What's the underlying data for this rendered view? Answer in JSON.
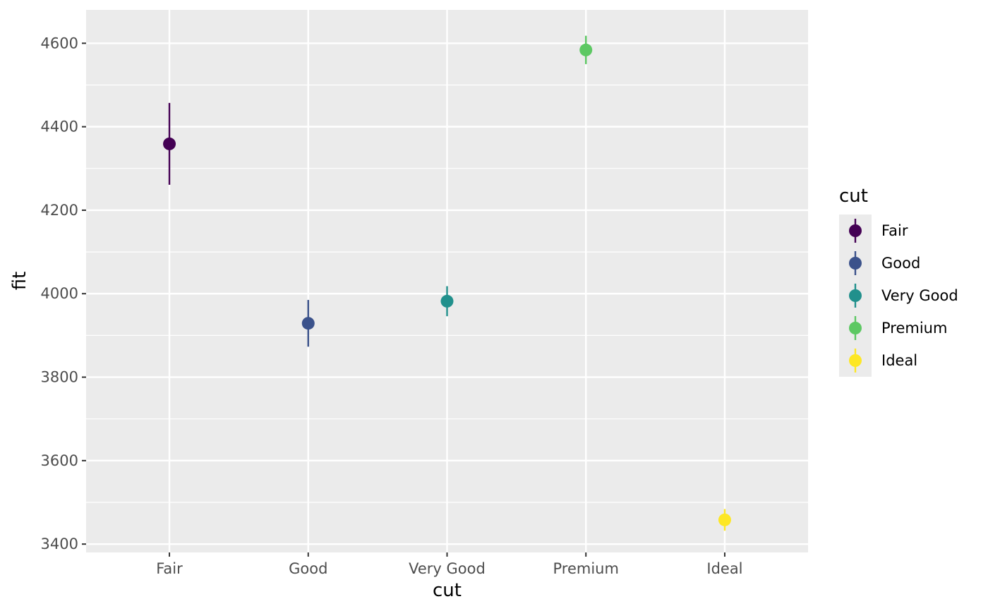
{
  "chart_data": {
    "type": "scatter",
    "xlabel": "cut",
    "ylabel": "fit",
    "categories": [
      "Fair",
      "Good",
      "Very Good",
      "Premium",
      "Ideal"
    ],
    "ylim": [
      3380,
      4680
    ],
    "y_ticks": [
      3400,
      3600,
      3800,
      4000,
      4200,
      4400,
      4600
    ],
    "y_tick_labels": [
      "3400",
      "3600",
      "3800",
      "4000",
      "4200",
      "4400",
      "4600"
    ],
    "grid": true,
    "legend": {
      "title": "cut",
      "position": "right",
      "entries": [
        "Fair",
        "Good",
        "Very Good",
        "Premium",
        "Ideal"
      ]
    },
    "points": [
      {
        "category": "Fair",
        "fit": 4359,
        "lower": 4261,
        "upper": 4457,
        "color": "#440154"
      },
      {
        "category": "Good",
        "fit": 3929,
        "lower": 3873,
        "upper": 3985,
        "color": "#3B528B"
      },
      {
        "category": "Very Good",
        "fit": 3982,
        "lower": 3946,
        "upper": 4018,
        "color": "#21908C"
      },
      {
        "category": "Premium",
        "fit": 4584,
        "lower": 4550,
        "upper": 4618,
        "color": "#5DC863"
      },
      {
        "category": "Ideal",
        "fit": 3458,
        "lower": 3432,
        "upper": 3484,
        "color": "#FDE725"
      }
    ]
  }
}
